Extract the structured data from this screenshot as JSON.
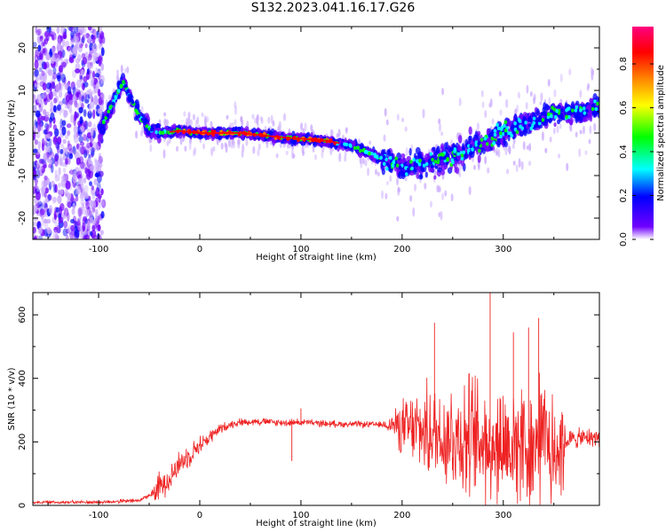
{
  "title": "S132.2023.041.16.17.G26",
  "chart_data": [
    {
      "type": "heatmap",
      "xlabel": "Height of straight line (km)",
      "ylabel": "Frequency (Hz)",
      "xlim": [
        -165,
        395
      ],
      "ylim": [
        -25,
        25
      ],
      "xticks": [
        -100,
        0,
        100,
        200,
        300
      ],
      "yticks": [
        -20,
        -10,
        0,
        10,
        20
      ],
      "colorbar": {
        "label": "Normalized spectral amplitude",
        "range": [
          0,
          0.97
        ],
        "ticks": [
          0.0,
          0.2,
          0.4,
          0.6,
          0.8
        ],
        "tick_labels": [
          "0.0",
          "0.2",
          "0.4",
          "0.6",
          "0.8"
        ],
        "colormap": [
          "#ffffff",
          "#7000ff",
          "#0000ff",
          "#00ffff",
          "#00ff00",
          "#ffff00",
          "#ff8000",
          "#ff0000",
          "#ff0080"
        ]
      },
      "ridge": {
        "x": [
          -100,
          -90,
          -80,
          -75,
          -70,
          -60,
          -50,
          -40,
          -20,
          0,
          40,
          80,
          110,
          130,
          150,
          180,
          200,
          220,
          240,
          260,
          280,
          300,
          320,
          340,
          360,
          380,
          395
        ],
        "freq": [
          0,
          5,
          10,
          12,
          9,
          4,
          1,
          0,
          0.5,
          0,
          0,
          -1,
          -1.5,
          -2,
          -3,
          -6,
          -8,
          -7,
          -6,
          -5,
          -2,
          0,
          2,
          4,
          5,
          5,
          6
        ]
      }
    },
    {
      "type": "line",
      "xlabel": "Height of straight line (km)",
      "ylabel": "SNR (10 * v/v)",
      "xlim": [
        -165,
        395
      ],
      "ylim": [
        0,
        670
      ],
      "xticks": [
        -100,
        0,
        100,
        200,
        300
      ],
      "yticks": [
        0,
        200,
        400,
        600
      ],
      "series": [
        {
          "color": "#ee2222",
          "baseline": {
            "x": [
              -165,
              -100,
              -60,
              -45,
              -30,
              -20,
              -10,
              0,
              10,
              20,
              30,
              40,
              60,
              80,
              100,
              120,
              140,
              160,
              180,
              190,
              200,
              230,
              260,
              290,
              320,
              350,
              360,
              370,
              395
            ],
            "y": [
              10,
              10,
              15,
              40,
              90,
              130,
              160,
              190,
              215,
              240,
              255,
              262,
              265,
              260,
              262,
              258,
              256,
              255,
              254,
              255,
              245,
              230,
              215,
              200,
              195,
              190,
              200,
              210,
              215
            ]
          },
          "noise_amplitude": {
            "x": [
              -165,
              -50,
              -40,
              -20,
              30,
              180,
              190,
              200,
              230,
              260,
              290,
              330,
              360,
              361,
              395
            ],
            "y": [
              6,
              8,
              60,
              50,
              15,
              12,
              40,
              110,
              190,
              240,
              260,
              250,
              240,
              40,
              35
            ]
          },
          "spikes": [
            {
              "x": 287,
              "y": 670
            },
            {
              "x": 232,
              "y": 575
            },
            {
              "x": 335,
              "y": 590
            },
            {
              "x": 325,
              "y": 560
            },
            {
              "x": 310,
              "y": 545
            },
            {
              "x": 100,
              "y": 305
            },
            {
              "x": 91,
              "y": 140
            }
          ]
        }
      ]
    }
  ]
}
